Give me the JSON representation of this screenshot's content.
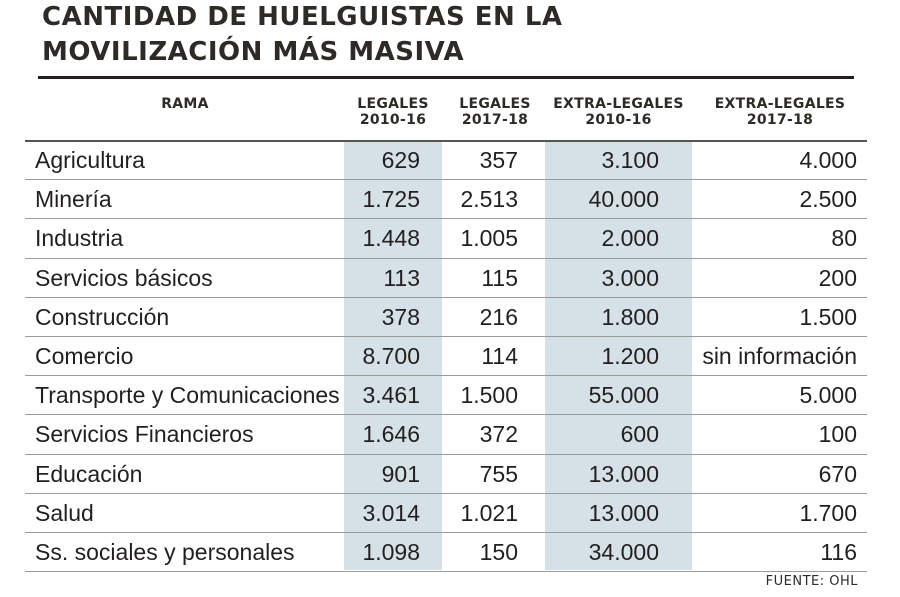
{
  "chart_data": {
    "type": "table",
    "title_line1": "CANTIDAD DE HUELGUISTAS EN LA",
    "title_line2": "MOVILIZACIÓN MÁS MASIVA",
    "columns": [
      {
        "line1": "RAMA",
        "line2": ""
      },
      {
        "line1": "LEGALES",
        "line2": "2010-16"
      },
      {
        "line1": "LEGALES",
        "line2": "2017-18"
      },
      {
        "line1": "EXTRA-LEGALES",
        "line2": "2010-16"
      },
      {
        "line1": "EXTRA-LEGALES",
        "line2": "2017-18"
      }
    ],
    "rows": [
      [
        "Agricultura",
        "629",
        "357",
        "3.100",
        "4.000"
      ],
      [
        "Minería",
        "1.725",
        "2.513",
        "40.000",
        "2.500"
      ],
      [
        "Industria",
        "1.448",
        "1.005",
        "2.000",
        "80"
      ],
      [
        "Servicios básicos",
        "113",
        "115",
        "3.000",
        "200"
      ],
      [
        "Construcción",
        "378",
        "216",
        "1.800",
        "1.500"
      ],
      [
        "Comercio",
        "8.700",
        "114",
        "1.200",
        "sin información"
      ],
      [
        "Transporte y Comunicaciones",
        "3.461",
        "1.500",
        "55.000",
        "5.000"
      ],
      [
        "Servicios Financieros",
        "1.646",
        "372",
        "600",
        "100"
      ],
      [
        "Educación",
        "901",
        "755",
        "13.000",
        "670"
      ],
      [
        "Salud",
        "3.014",
        "1.021",
        "13.000",
        "1.700"
      ],
      [
        "Ss. sociales y personales",
        "1.098",
        "150",
        "34.000",
        "116"
      ]
    ],
    "highlight_color": "#d5e1e6",
    "source": "FUENTE: OHL"
  }
}
